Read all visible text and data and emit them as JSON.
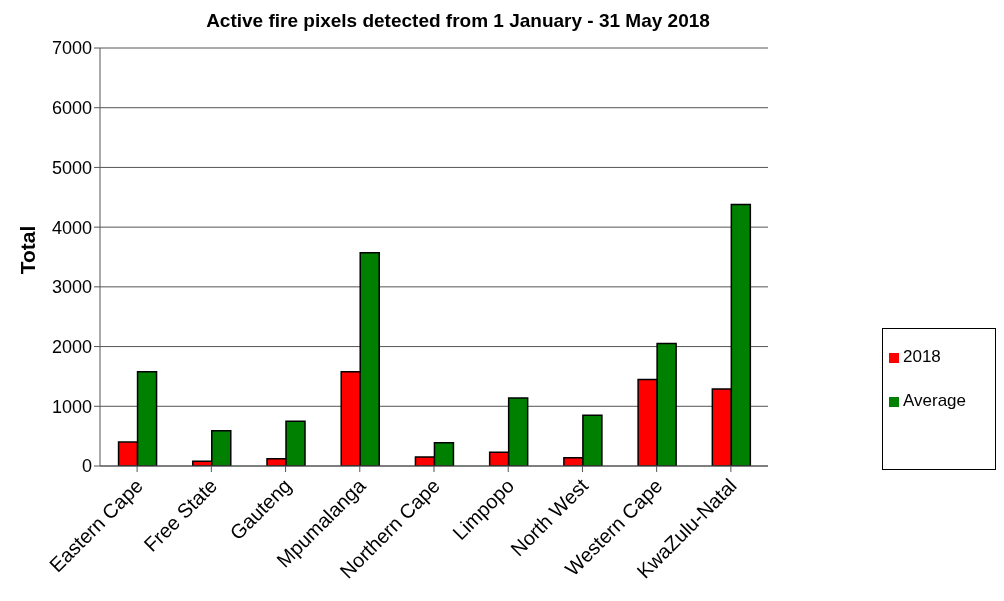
{
  "chart_data": {
    "type": "bar",
    "title": "Active fire pixels detected from 1 January -  31 May 2018",
    "ylabel": "Total",
    "categories": [
      "Eastern Cape",
      "Free State",
      "Gauteng",
      "Mpumalanga",
      "Northern Cape",
      "Limpopo",
      "North West",
      "Western Cape",
      "KwaZulu-Natal"
    ],
    "series": [
      {
        "name": "2018",
        "color": "#ff0000",
        "values": [
          400,
          80,
          120,
          1580,
          150,
          230,
          140,
          1450,
          1290
        ]
      },
      {
        "name": "Average",
        "color": "#008000",
        "values": [
          1580,
          590,
          750,
          3570,
          390,
          1140,
          850,
          2050,
          4380
        ]
      }
    ],
    "ylim": [
      0,
      7000
    ],
    "yticks": [
      0,
      1000,
      2000,
      3000,
      4000,
      5000,
      6000,
      7000
    ],
    "grid": "y",
    "legend": "right"
  }
}
